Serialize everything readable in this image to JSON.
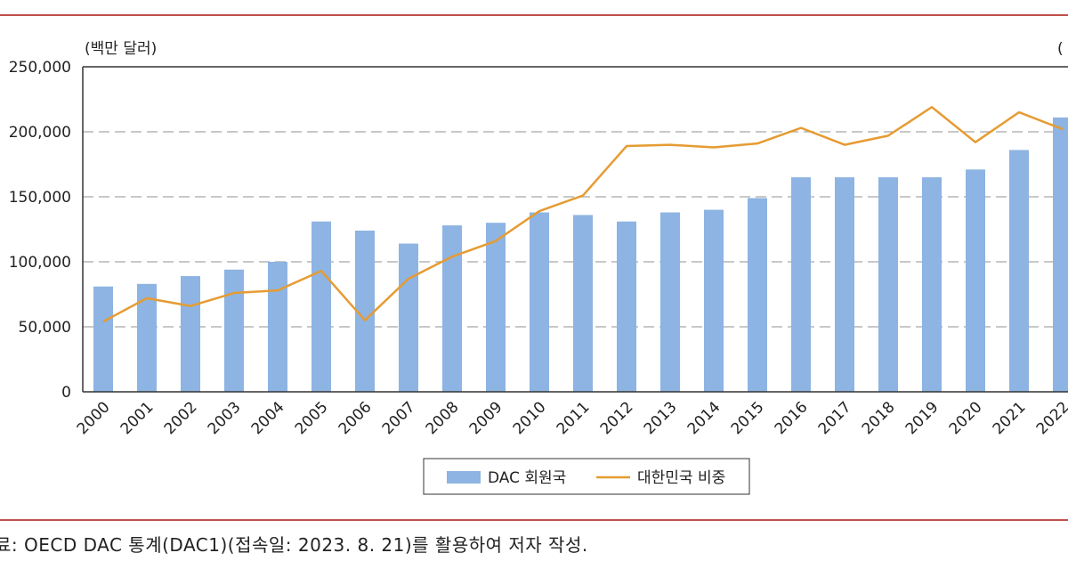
{
  "chart_data": {
    "type": "bar",
    "unit_label": "(백만 달러)",
    "right_unit_label_partial": "(",
    "categories": [
      "2000",
      "2001",
      "2002",
      "2003",
      "2004",
      "2005",
      "2006",
      "2007",
      "2008",
      "2009",
      "2010",
      "2011",
      "2012",
      "2013",
      "2014",
      "2015",
      "2016",
      "2017",
      "2018",
      "2019",
      "2020",
      "2021",
      "2022"
    ],
    "series": [
      {
        "name": "DAC 회원국",
        "kind": "bar",
        "color": "#8db4e2",
        "values": [
          81000,
          83000,
          89000,
          94000,
          100000,
          131000,
          124000,
          114000,
          128000,
          130000,
          138000,
          136000,
          131000,
          138000,
          140000,
          149000,
          165000,
          165000,
          165000,
          165000,
          171000,
          186000,
          211000
        ]
      },
      {
        "name": "대한민국 비중",
        "kind": "line",
        "color": "#e69b32",
        "values": [
          54000,
          72000,
          66000,
          76000,
          78000,
          93000,
          55000,
          87000,
          104000,
          116000,
          139000,
          151000,
          189000,
          190000,
          188000,
          191000,
          203000,
          190000,
          197000,
          219000,
          192000,
          215000,
          202000
        ]
      }
    ],
    "yticks": [
      "250,000",
      "200,000",
      "150,000",
      "100,000",
      "50,000",
      "0"
    ],
    "ylim": [
      0,
      250000
    ],
    "grid": "horizontal dashed",
    "legend_position": "bottom"
  },
  "source_note": "료: OECD DAC 통계(DAC1)(접속일: 2023. 8. 21)를 활용하여 저자 작성."
}
